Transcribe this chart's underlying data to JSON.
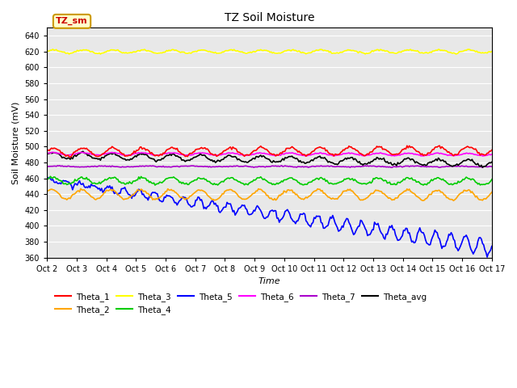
{
  "title": "TZ Soil Moisture",
  "xlabel": "Time",
  "ylabel": "Soil Moisture (mV)",
  "ylim": [
    360,
    650
  ],
  "yticks": [
    360,
    380,
    400,
    420,
    440,
    460,
    480,
    500,
    520,
    540,
    560,
    580,
    600,
    620,
    640
  ],
  "x_labels": [
    "Oct 2",
    "Oct 3",
    "Oct 4",
    "Oct 5",
    "Oct 6",
    "Oct 7",
    "Oct 8",
    "Oct 9",
    "Oct 10",
    "Oct 11",
    "Oct 12",
    "Oct 13",
    "Oct 14",
    "Oct 15",
    "Oct 16",
    "Oct 17"
  ],
  "n_days": 16,
  "series": {
    "Theta_1": {
      "color": "#ff0000"
    },
    "Theta_2": {
      "color": "#ffa500"
    },
    "Theta_3": {
      "color": "#ffff00"
    },
    "Theta_4": {
      "color": "#00cc00"
    },
    "Theta_5": {
      "color": "#0000ff"
    },
    "Theta_6": {
      "color": "#ff00ff"
    },
    "Theta_7": {
      "color": "#aa00cc"
    },
    "Theta_avg": {
      "color": "#000000"
    }
  },
  "bg_color": "#e8e8e8",
  "legend_label_box": "TZ_sm",
  "legend_box_facecolor": "#ffffcc",
  "legend_box_edgecolor": "#cc9900",
  "legend_box_textcolor": "#cc0000",
  "figsize": [
    6.4,
    4.8
  ],
  "dpi": 100
}
